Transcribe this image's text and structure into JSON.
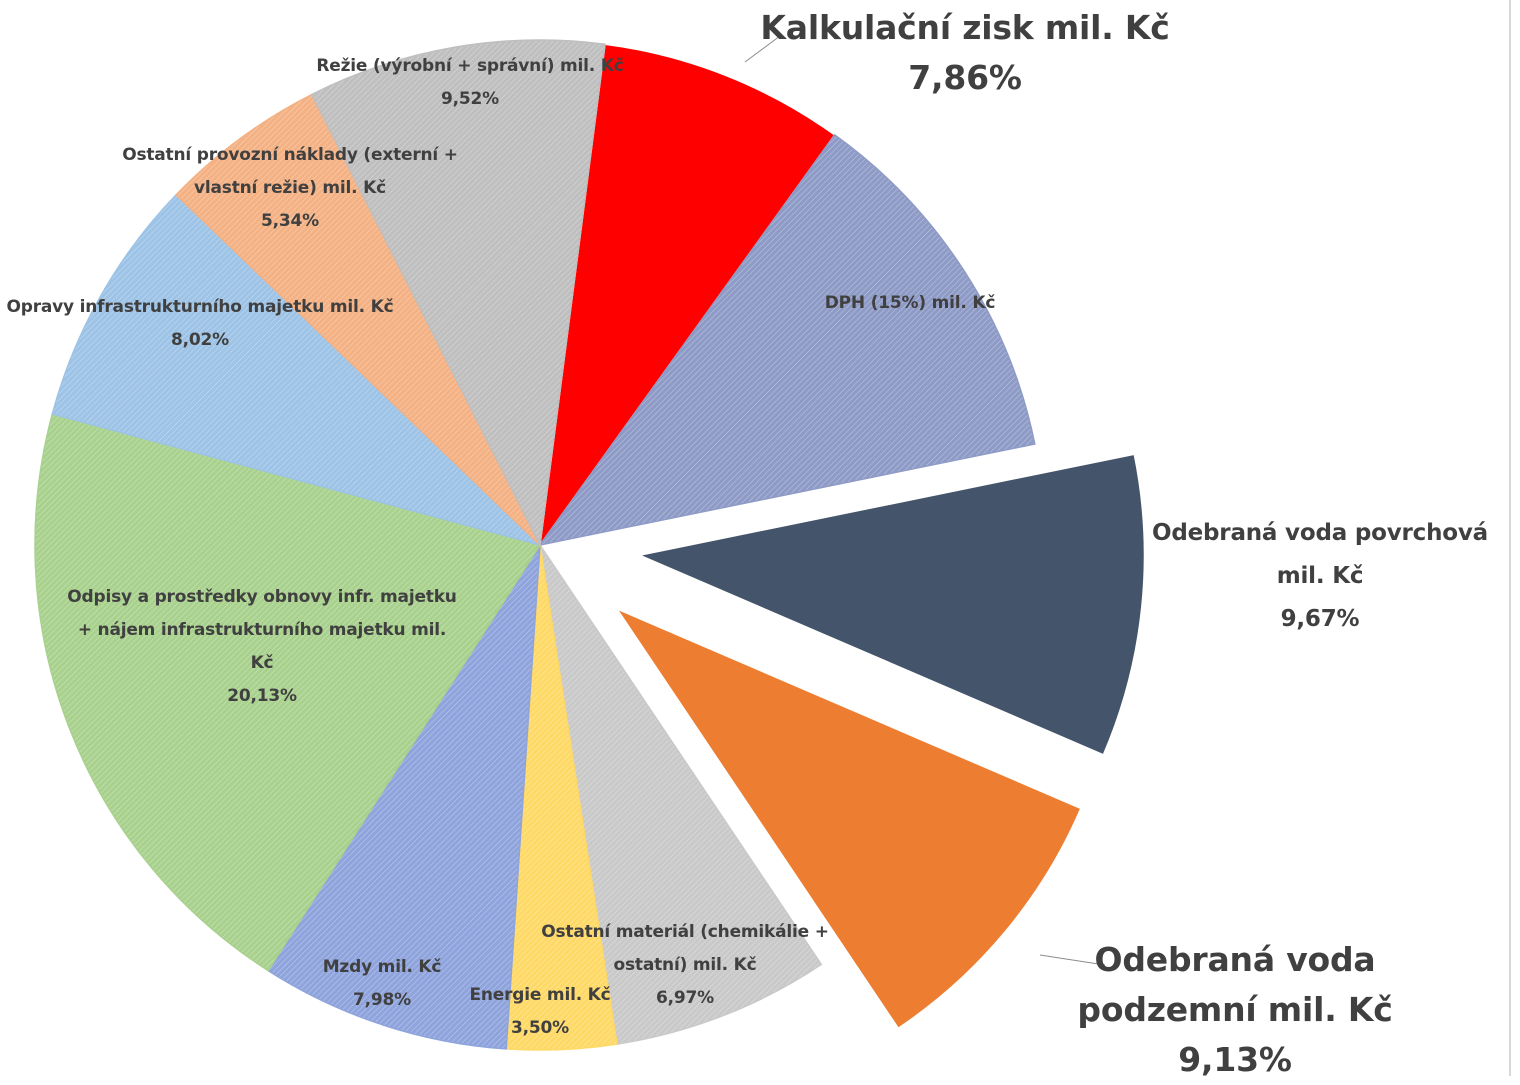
{
  "chart_data": {
    "type": "pie",
    "categories": [
      "Kalkulační zisk mil. Kč",
      "DPH (15%) mil. Kč",
      "Odebraná voda povrchová mil. Kč",
      "Odebraná voda podzemní mil. Kč",
      "Ostatní materiál (chemikálie + ostatní) mil. Kč",
      "Energie mil. Kč",
      "Mzdy mil. Kč",
      "Odpisy a prostředky obnovy infr. majetku + nájem infrastrukturního majetku mil. Kč",
      "Opravy infrastrukturního majetku mil. Kč",
      "Ostatní provozní náklady (externí + vlastní režie) mil. Kč",
      "Režie (výrobní + správní) mil. Kč"
    ],
    "values": [
      7.86,
      11.88,
      9.67,
      9.13,
      6.97,
      3.5,
      7.98,
      20.13,
      8.02,
      5.34,
      9.52
    ],
    "value_labels": [
      "7,86%",
      null,
      "9,67%",
      "9,13%",
      "6,97%",
      "3,50%",
      "7,98%",
      "20,13%",
      "8,02%",
      "5,34%",
      "9,52%"
    ],
    "colors": [
      "#ff0000",
      "#8e9bc6",
      "#44546a",
      "#ed7d31",
      "#c9c9c9",
      "#ffd966",
      "#8fa4dc",
      "#a9d18e",
      "#9dc3e6",
      "#f4b183",
      "#bfbfbf"
    ],
    "hatched": [
      false,
      true,
      false,
      false,
      true,
      true,
      true,
      true,
      true,
      true,
      true
    ],
    "exploded": [
      false,
      false,
      true,
      true,
      false,
      false,
      false,
      false,
      false,
      false,
      false
    ]
  }
}
